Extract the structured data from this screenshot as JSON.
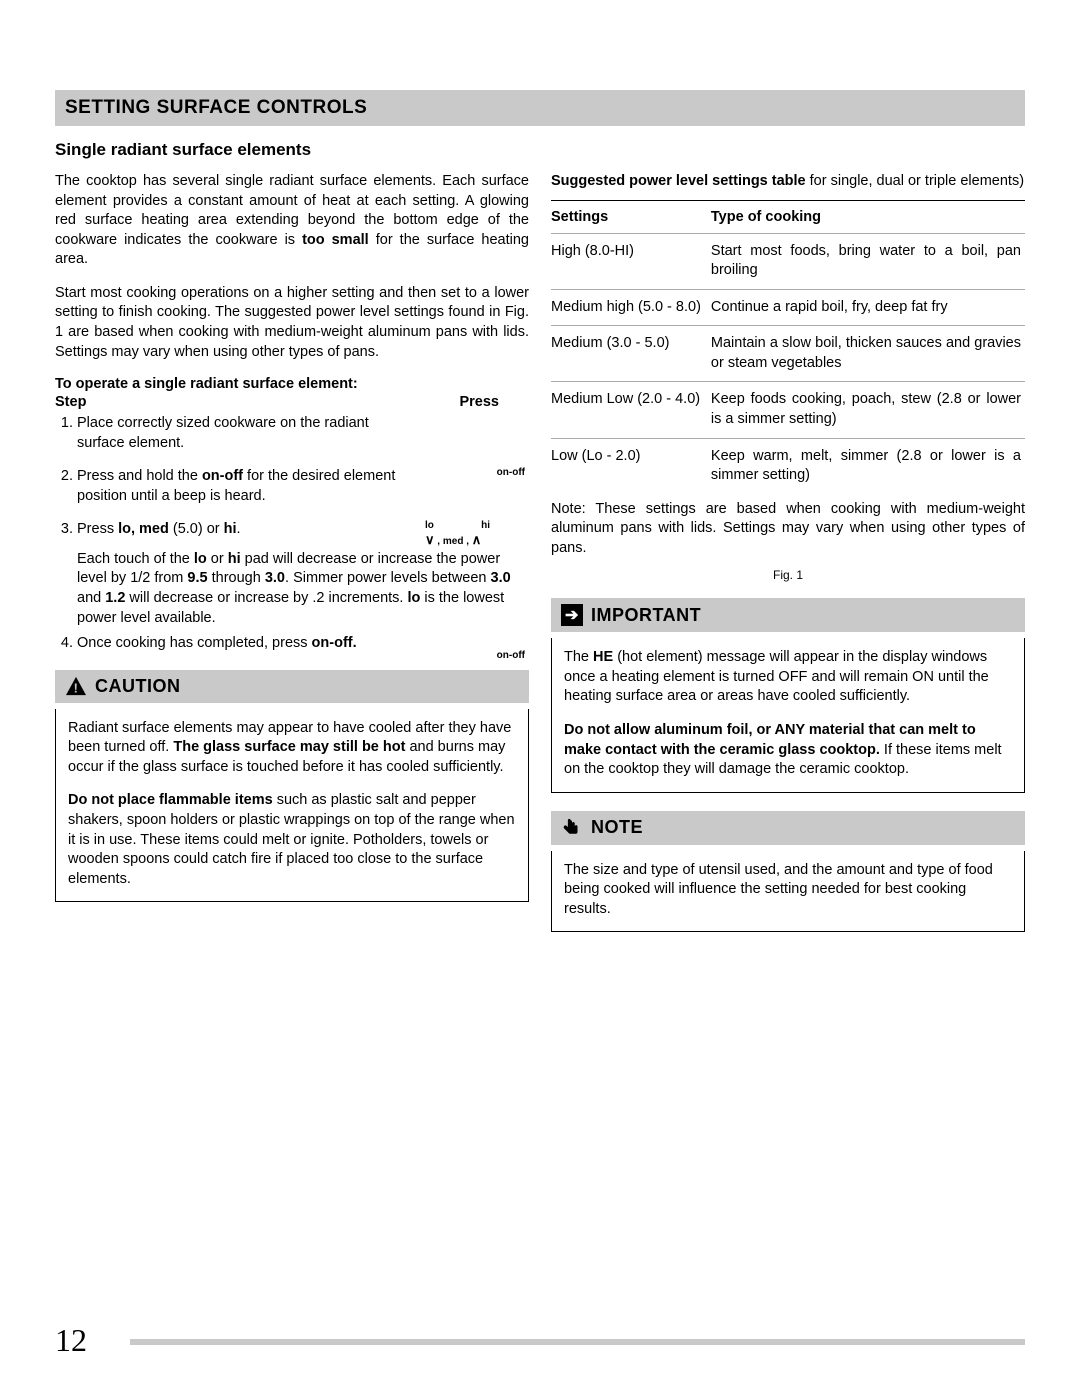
{
  "header": "SETTING SURFACE CONTROLS",
  "subtitle": "Single radiant surface elements",
  "left": {
    "para1_a": "The cooktop has several single radiant surface elements. Each surface element provides a constant amount of heat at each setting. A glowing red surface heating area extending beyond the bottom edge of the cookware indicates the cookware is ",
    "para1_bold": "too small",
    "para1_b": " for the surface heating area.",
    "para2": "Start most cooking operations on a higher setting and then set to a lower setting to finish cooking. The suggested power level settings found in Fig. 1 are based when cooking with medium-weight aluminum pans with lids. Settings may vary when using other types of pans.",
    "steps_intro": "To operate a single radiant surface element:",
    "steps_header_step": "Step",
    "steps_header_press": "Press",
    "steps": [
      {
        "text_a": "Place correctly sized cookware on the radiant surface element.",
        "press": ""
      },
      {
        "text_a": "Press and hold the ",
        "bold": "on-off",
        "text_b": " for the desired element position until a beep is heard.",
        "press": "on-off"
      },
      {
        "text_a": "Press ",
        "bold": "lo, med",
        "text_b": " (5.0) or ",
        "bold2": "hi",
        "text_c": ".",
        "press_complex": true
      },
      {
        "extra": true,
        "text": "Each touch of the <b>lo</b> or <b>hi</b> pad will decrease or increase the power level by 1/2 from <b>9.5</b> through <b>3.0</b>. Simmer power levels between <b>3.0</b> and <b>1.2</b> will decrease or increase by .2 increments. <b>lo</b> is the lowest power level available."
      },
      {
        "text_a": "Once cooking has completed, press ",
        "bold": "on-off.",
        "press": "on-off"
      }
    ],
    "caution_title": "CAUTION",
    "caution_p1_a": "Radiant surface elements may appear to have cooled after they have been turned off. ",
    "caution_p1_bold": "The glass surface may still be hot",
    "caution_p1_b": " and burns may occur if the glass surface is touched before it has cooled sufficiently.",
    "caution_p2_bold": "Do not place flammable items",
    "caution_p2": " such as plastic salt and pepper shakers, spoon holders or plastic wrappings on top of the range when it is in use. These items could melt or ignite. Potholders, towels or wooden spoons could catch fire if placed too close to the surface elements."
  },
  "right": {
    "table_intro_bold": "Suggested power level settings table",
    "table_intro_rest": " for single, dual or triple elements)",
    "table_head_settings": "Settings",
    "table_head_type": "Type of cooking",
    "rows": [
      {
        "setting": "High (8.0-HI)",
        "type": "Start most foods, bring water to a boil, pan broiling"
      },
      {
        "setting": "Medium high (5.0 - 8.0)",
        "type": "Continue a rapid boil, fry, deep fat fry"
      },
      {
        "setting": "Medium (3.0 - 5.0)",
        "type": "Maintain a slow boil, thicken sauces and gravies or steam vegetables"
      },
      {
        "setting": "Medium Low (2.0 - 4.0)",
        "type": "Keep foods cooking, poach, stew (2.8 or lower is a simmer setting)"
      },
      {
        "setting": "Low (Lo - 2.0)",
        "type": "Keep warm, melt, simmer (2.8 or lower is a simmer setting)"
      }
    ],
    "table_note": "Note: These settings are based when cooking with medium-weight aluminum pans with lids. Settings may vary when using other types of pans.",
    "fig_caption": "Fig. 1",
    "important_title": "IMPORTANT",
    "important_p1_a": "The ",
    "important_p1_bold": "HE",
    "important_p1_b": " (hot element) message will appear in the display windows once a heating element is turned OFF and will remain ON until the heating surface area or areas have cooled sufficiently.",
    "important_p2_bold": "Do not allow aluminum foil, or ANY material that can melt to make contact with the ceramic glass cooktop.",
    "important_p2": " If these items melt on the cooktop they will damage the ceramic cooktop.",
    "note_title": "NOTE",
    "note_p": "The size and type of utensil used, and the amount and type of food being cooked will influence the setting needed for best cooking results."
  },
  "page_number": "12"
}
